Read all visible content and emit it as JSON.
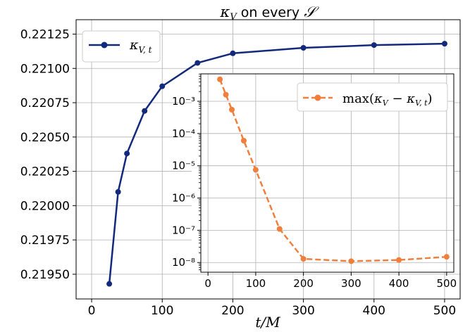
{
  "chart_data": [
    {
      "type": "line",
      "title": "κ_V on every 𝒮",
      "xlabel": "t/M",
      "ylabel": "",
      "xlim": [
        -22,
        522
      ],
      "ylim": [
        0.21932,
        0.221355
      ],
      "xticks": [
        0,
        100,
        200,
        300,
        400,
        500
      ],
      "yticks": [
        0.2195,
        0.21975,
        0.22,
        0.22025,
        0.2205,
        0.22075,
        0.221,
        0.22125
      ],
      "ytick_labels": [
        "0.21950",
        "0.21975",
        "0.22000",
        "0.22025",
        "0.22050",
        "0.22075",
        "0.22100",
        "0.22125"
      ],
      "grid": true,
      "legend_position": "upper-left",
      "series": [
        {
          "name": "κ_{V,t}",
          "color": "#132a7c",
          "marker": "circle",
          "linestyle": "solid",
          "x": [
            25,
            37.5,
            50,
            75,
            100,
            150,
            200,
            300,
            400,
            500
          ],
          "y": [
            0.21943,
            0.2201,
            0.22038,
            0.22069,
            0.22087,
            0.22104,
            0.22111,
            0.22115,
            0.22117,
            0.22118
          ]
        }
      ]
    },
    {
      "type": "line",
      "role": "inset",
      "scale": "log-y",
      "xlim": [
        -15,
        515
      ],
      "ylim_log10": [
        -8.3,
        -2.15
      ],
      "xticks": [
        0,
        100,
        200,
        300,
        400,
        500
      ],
      "yticks_exp": [
        -3,
        -4,
        -5,
        -6,
        -7,
        -8
      ],
      "ytick_labels": [
        "10⁻³",
        "10⁻⁴",
        "10⁻⁵",
        "10⁻⁶",
        "10⁻⁷",
        "10⁻⁸"
      ],
      "grid": true,
      "legend_position": "upper-right",
      "series": [
        {
          "name": "max(κ_V − κ_{V,t})",
          "color": "#f07f3c",
          "marker": "circle",
          "linestyle": "dashed",
          "x": [
            25,
            37.5,
            50,
            75,
            100,
            150,
            200,
            300,
            400,
            500
          ],
          "y": [
            0.0048,
            0.0016,
            0.00055,
            6e-05,
            7.5e-06,
            1.1e-07,
            1.3e-08,
            1.1e-08,
            1.2e-08,
            1.5e-08
          ]
        }
      ]
    }
  ]
}
